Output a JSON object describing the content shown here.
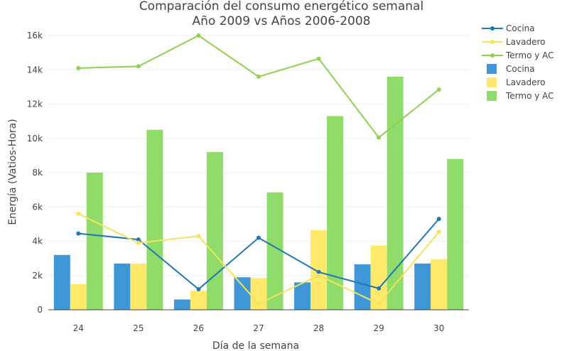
{
  "chart_data": {
    "type": "bar",
    "title_line1": "Comparación del consumo energético semanal",
    "title_line2": "Año 2009 vs Años 2006-2008",
    "xlabel": "Día de la semana",
    "ylabel": "Energía (Vatios-Hora)",
    "categories": [
      "24",
      "25",
      "26",
      "27",
      "28",
      "29",
      "30"
    ],
    "ylim": [
      0,
      17000
    ],
    "yticks": [
      0,
      2000,
      4000,
      6000,
      8000,
      10000,
      12000,
      14000,
      16000
    ],
    "ytick_labels": [
      "0",
      "2k",
      "4k",
      "6k",
      "8k",
      "10k",
      "12k",
      "14k",
      "16k"
    ],
    "grid": true,
    "legend_position": "top-right",
    "line_series": [
      {
        "name": "Cocina",
        "color": "#1f77b4",
        "values": [
          4450,
          4100,
          1200,
          4200,
          2200,
          1250,
          5300
        ]
      },
      {
        "name": "Lavadero",
        "color": "#f5e35a",
        "values": [
          5600,
          3900,
          4300,
          350,
          2000,
          350,
          4550
        ]
      },
      {
        "name": "Termo y AC",
        "color": "#8fd14f",
        "values": [
          14100,
          14200,
          16000,
          13600,
          14650,
          10050,
          12850
        ]
      }
    ],
    "bar_series": [
      {
        "name": "Cocina",
        "color": "#3f97d8",
        "values": [
          3200,
          2700,
          600,
          1900,
          1600,
          2650,
          2700
        ]
      },
      {
        "name": "Lavadero",
        "color": "#ffe96a",
        "values": [
          1500,
          2700,
          1100,
          1850,
          4650,
          3750,
          2950
        ]
      },
      {
        "name": "Termo y AC",
        "color": "#90dc6a",
        "values": [
          8000,
          10500,
          9200,
          6850,
          11300,
          13600,
          8800
        ]
      }
    ]
  }
}
